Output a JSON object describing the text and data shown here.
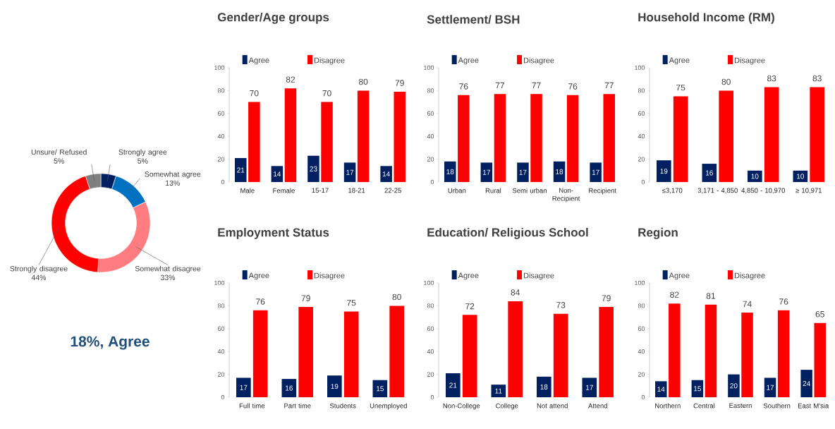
{
  "chart_data": [
    {
      "type": "donut",
      "categories": [
        "Strongly agree",
        "Somewhat agree",
        "Somewhat disagree",
        "Strongly disagree",
        "Unsure/ Refused"
      ],
      "values": [
        5,
        13,
        33,
        44,
        5
      ],
      "value_labels": [
        "5%",
        "13%",
        "33%",
        "44%",
        "5%"
      ],
      "colors": [
        "#002060",
        "#0070c0",
        "#ff7c80",
        "#ff0000",
        "#7f7f7f"
      ],
      "annotations": [
        "18%, Agree"
      ]
    },
    {
      "type": "bar",
      "title": "Gender/Age groups",
      "categories": [
        "Male",
        "Female",
        "15-17",
        "18-21",
        "22-25"
      ],
      "series": [
        {
          "name": "Agree",
          "color": "#002060",
          "values": [
            21,
            14,
            23,
            17,
            14
          ]
        },
        {
          "name": "Disagree",
          "color": "#ff0000",
          "values": [
            70,
            82,
            70,
            80,
            79
          ]
        }
      ],
      "ylim": [
        0,
        100
      ],
      "yticks": [
        0,
        20,
        40,
        60,
        80,
        100
      ],
      "data_labels": true,
      "legend": "top"
    },
    {
      "type": "bar",
      "title": "Settlement/ BSH",
      "categories": [
        "Urban",
        "Rural",
        "Semi urban",
        "Non-Recipient",
        "Recipient"
      ],
      "series": [
        {
          "name": "Agree",
          "color": "#002060",
          "values": [
            18,
            17,
            17,
            18,
            17
          ]
        },
        {
          "name": "Disagree",
          "color": "#ff0000",
          "values": [
            76,
            77,
            77,
            76,
            77
          ]
        }
      ],
      "ylim": [
        0,
        100
      ],
      "yticks": [
        0,
        20,
        40,
        60,
        80,
        100
      ],
      "data_labels": true,
      "legend": "top"
    },
    {
      "type": "bar",
      "title": "Household Income (RM)",
      "categories": [
        "≤3,170",
        "3,171 - 4,850",
        "4,850 - 10,970",
        "≥ 10,971"
      ],
      "series": [
        {
          "name": "Agree",
          "color": "#002060",
          "values": [
            19,
            16,
            10,
            10
          ]
        },
        {
          "name": "Disagree",
          "color": "#ff0000",
          "values": [
            75,
            80,
            83,
            83
          ]
        }
      ],
      "ylim": [
        0,
        100
      ],
      "yticks": [
        0,
        20,
        40,
        60,
        80,
        100
      ],
      "data_labels": true,
      "legend": "top"
    },
    {
      "type": "bar",
      "title": "Employment Status",
      "categories": [
        "Full time",
        "Part time",
        "Students",
        "Unemployed"
      ],
      "series": [
        {
          "name": "Agree",
          "color": "#002060",
          "values": [
            17,
            16,
            19,
            15
          ]
        },
        {
          "name": "Disagree",
          "color": "#ff0000",
          "values": [
            76,
            79,
            75,
            80
          ]
        }
      ],
      "ylim": [
        0,
        100
      ],
      "yticks": [
        0,
        20,
        40,
        60,
        80,
        100
      ],
      "data_labels": true,
      "legend": "top"
    },
    {
      "type": "bar",
      "title": "Education/ Religious School",
      "categories": [
        "Non-College",
        "College",
        "Not attend",
        "Attend"
      ],
      "series": [
        {
          "name": "Agree",
          "color": "#002060",
          "values": [
            21,
            11,
            18,
            17
          ]
        },
        {
          "name": "Disagree",
          "color": "#ff0000",
          "values": [
            72,
            84,
            73,
            79
          ]
        }
      ],
      "ylim": [
        0,
        100
      ],
      "yticks": [
        0,
        20,
        40,
        60,
        80,
        100
      ],
      "data_labels": true,
      "legend": "top"
    },
    {
      "type": "bar",
      "title": "Region",
      "categories": [
        "Northern",
        "Central",
        "Eastern",
        "Southern",
        "East M'sia"
      ],
      "series": [
        {
          "name": "Agree",
          "color": "#002060",
          "values": [
            14,
            15,
            20,
            17,
            24
          ]
        },
        {
          "name": "Disagree",
          "color": "#ff0000",
          "values": [
            82,
            81,
            74,
            76,
            65
          ]
        }
      ],
      "ylim": [
        0,
        100
      ],
      "yticks": [
        0,
        20,
        40,
        60,
        80,
        100
      ],
      "data_labels": true,
      "legend": "top"
    }
  ]
}
